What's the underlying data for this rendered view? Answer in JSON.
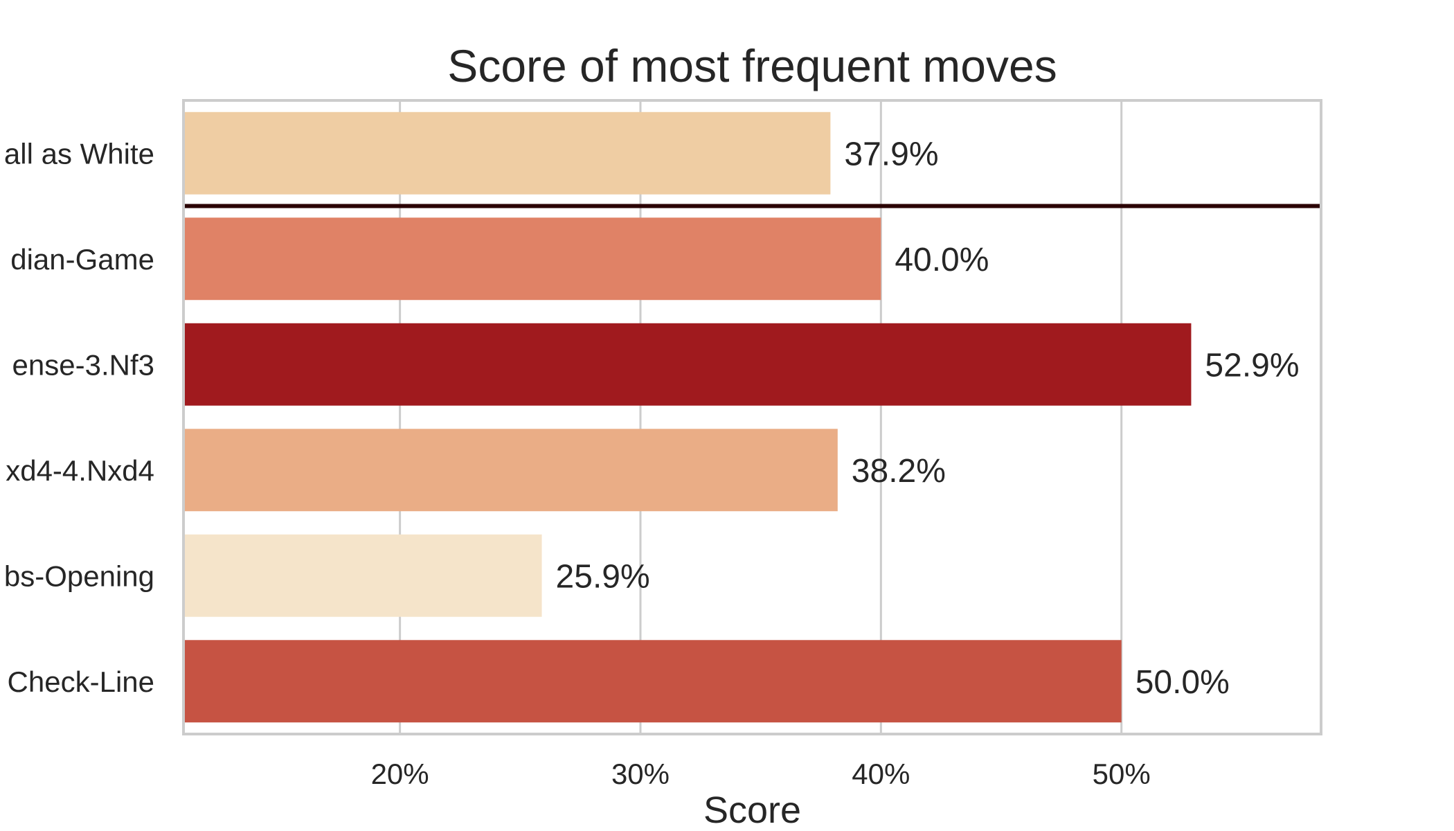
{
  "chart_data": {
    "type": "bar",
    "orientation": "horizontal",
    "title": "Score of most frequent moves",
    "xlabel": "Score",
    "ylabel": "",
    "xlim": [
      11,
      58.3
    ],
    "xticks": [
      20,
      30,
      40,
      50
    ],
    "xtick_labels": [
      "20%",
      "30%",
      "40%",
      "50%"
    ],
    "grid": "vertical",
    "categories": [
      "all as White",
      "dian-Game",
      "ense-3.Nf3",
      "xd4-4.Nxd4",
      "bs-Opening",
      "Check-Line"
    ],
    "values": [
      37.9,
      40.0,
      52.9,
      38.2,
      25.9,
      50.0
    ],
    "data_labels": [
      "37.9%",
      "40.0%",
      "52.9%",
      "38.2%",
      "25.9%",
      "50.0%"
    ],
    "bar_colors": [
      "#efcda3",
      "#e08266",
      "#a01a1e",
      "#eaad86",
      "#f5e4ca",
      "#c65343"
    ],
    "reference_line": {
      "after_category": 0,
      "color": "#2b0405"
    }
  }
}
